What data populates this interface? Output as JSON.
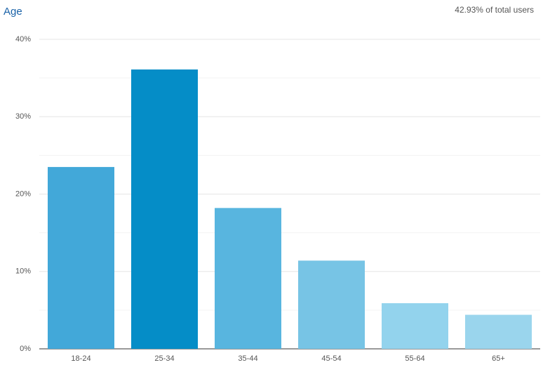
{
  "chart_data": {
    "type": "bar",
    "title": "Age",
    "subtitle": "42.93% of total users",
    "categories": [
      "18-24",
      "25-34",
      "35-44",
      "45-54",
      "55-64",
      "65+"
    ],
    "values": [
      23.5,
      36.1,
      18.2,
      11.4,
      5.9,
      4.4
    ],
    "colors": [
      "#42a8d9",
      "#058dc7",
      "#58b5df",
      "#77c4e5",
      "#93d3ed",
      "#9ad5ed"
    ],
    "ylim": [
      0,
      40
    ],
    "yticks": [
      {
        "value": 0,
        "label": "0%"
      },
      {
        "value": 10,
        "label": "10%"
      },
      {
        "value": 20,
        "label": "20%"
      },
      {
        "value": 30,
        "label": "30%"
      },
      {
        "value": 40,
        "label": "40%"
      }
    ],
    "minor_yticks": [
      5,
      15,
      25,
      35
    ],
    "grid": true
  }
}
